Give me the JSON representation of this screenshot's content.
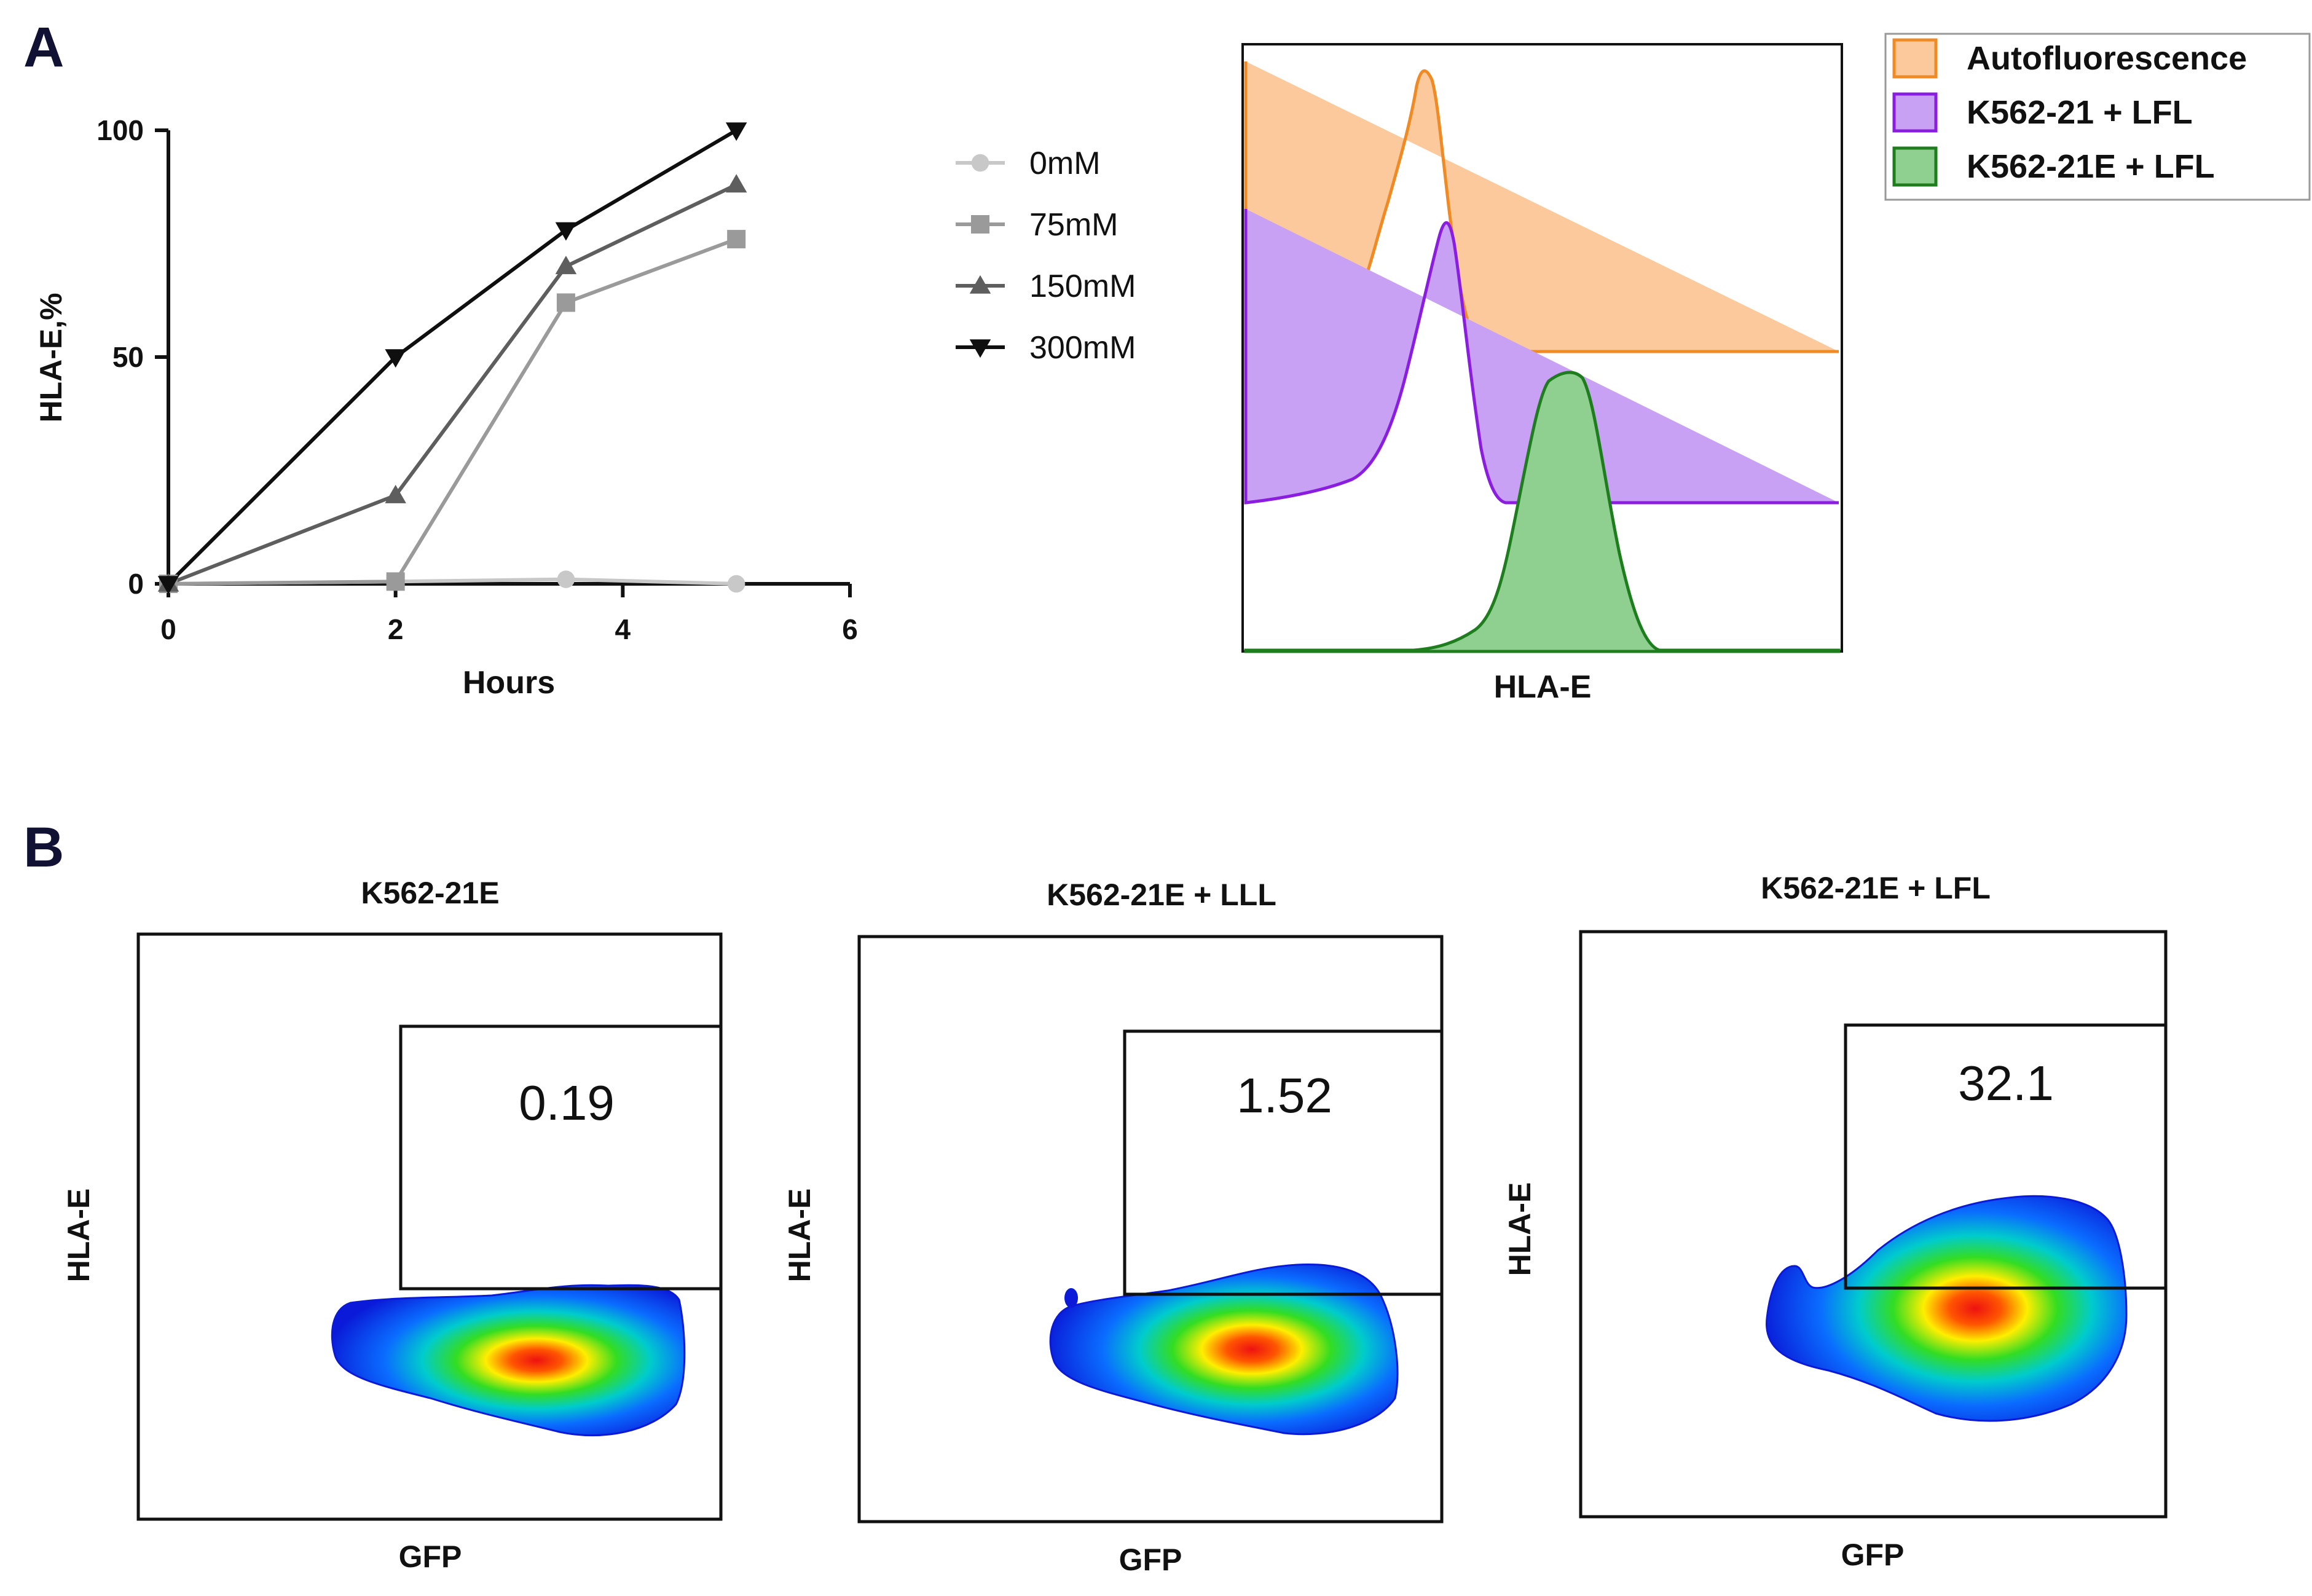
{
  "panels": {
    "a": "A",
    "b": "B"
  },
  "chart_data": [
    {
      "type": "line",
      "title": "",
      "xlabel": "Hours",
      "ylabel": "HLA-E,%",
      "xlim": [
        0,
        6
      ],
      "ylim": [
        0,
        100
      ],
      "xticks": [
        "0",
        "2",
        "4",
        "6"
      ],
      "yticks": [
        "0",
        "50",
        "100"
      ],
      "legend_position": "right",
      "series": [
        {
          "name": "0mM",
          "marker": "circle",
          "color": "#c8c8c8",
          "x": [
            0,
            2,
            3.5,
            5
          ],
          "y": [
            0,
            0.5,
            1,
            0
          ]
        },
        {
          "name": "75mM",
          "marker": "square",
          "color": "#9a9a9a",
          "x": [
            0,
            2,
            3.5,
            5
          ],
          "y": [
            0,
            0.5,
            62,
            76
          ]
        },
        {
          "name": "150mM",
          "marker": "triangle-up",
          "color": "#5e5e5e",
          "x": [
            0,
            2,
            3.5,
            5
          ],
          "y": [
            0,
            19.5,
            70,
            88
          ]
        },
        {
          "name": "300mM",
          "marker": "triangle-down",
          "color": "#0f0f0f",
          "x": [
            0,
            2,
            3.5,
            5
          ],
          "y": [
            0,
            50,
            78,
            100
          ]
        }
      ]
    },
    {
      "type": "area",
      "title": "",
      "xlabel": "HLA-E",
      "ylabel": "",
      "legend_position": "top-right",
      "series": [
        {
          "name": "Autofluorescence",
          "color": "#f08a24",
          "fill": "#fbc99b",
          "peak_position": 0.3
        },
        {
          "name": "K562-21 + LFL",
          "color": "#8a1de0",
          "fill": "#c8a1f4",
          "peak_position": 0.34
        },
        {
          "name": "K562-21E + LFL",
          "color": "#1e7e1e",
          "fill": "#8fcf8f",
          "peak_position": 0.55
        }
      ]
    },
    {
      "type": "heatmap",
      "title": "K562-21E",
      "xlabel": "GFP",
      "ylabel": "HLA-E",
      "gate_value": "0.19"
    },
    {
      "type": "heatmap",
      "title": "K562-21E + LLL",
      "xlabel": "GFP",
      "ylabel": "HLA-E",
      "gate_value": "1.52"
    },
    {
      "type": "heatmap",
      "title": "K562-21E + LFL",
      "xlabel": "GFP",
      "ylabel": "HLA-E",
      "gate_value": "32.1"
    }
  ]
}
